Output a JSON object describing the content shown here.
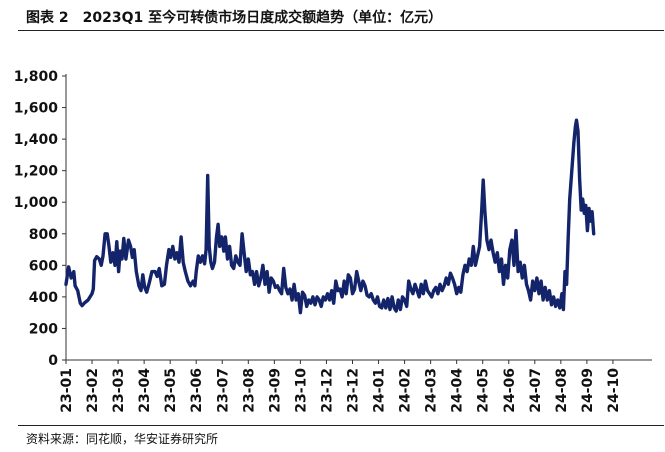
{
  "figure_title": "图表 2　2023Q1 至今可转债市场日度成交额趋势（单位：亿元）",
  "source_note": "资料来源：同花顺，华安证券研究所",
  "colors": {
    "line": "#13246b",
    "axis": "#333333",
    "text": "#111111"
  },
  "chart_data": {
    "type": "line",
    "title": "",
    "xlabel": "",
    "ylabel": "",
    "ylim": [
      0,
      1800
    ],
    "yticks": [
      0,
      200,
      400,
      600,
      800,
      1000,
      1200,
      1400,
      1600,
      1800
    ],
    "ytick_labels": [
      "0",
      "200",
      "400",
      "600",
      "800",
      "1,000",
      "1,200",
      "1,400",
      "1,600",
      "1,800"
    ],
    "xlim": [
      0,
      22.5
    ],
    "xtick_positions": [
      0,
      1,
      2,
      3,
      4,
      5,
      6,
      7,
      8,
      9,
      10,
      11,
      12,
      13,
      14,
      15,
      16,
      17,
      18,
      19,
      20,
      21
    ],
    "xtick_labels": [
      "23-01",
      "23-02",
      "23-03",
      "23-04",
      "23-05",
      "23-06",
      "23-07",
      "23-08",
      "23-09",
      "23-10",
      "23-12",
      "23-12",
      "24-01",
      "24-02",
      "24-03",
      "24-04",
      "24-05",
      "24-06",
      "24-07",
      "24-08",
      "24-09",
      "24-10"
    ],
    "grid": false,
    "legend": "none",
    "series": [
      {
        "color": "#13246b",
        "points": [
          [
            0,
            480
          ],
          [
            0.1,
            590
          ],
          [
            0.2,
            520
          ],
          [
            0.3,
            560
          ],
          [
            0.35,
            470
          ],
          [
            0.45,
            440
          ],
          [
            0.55,
            360
          ],
          [
            0.62,
            345
          ],
          [
            0.7,
            360
          ],
          [
            0.85,
            380
          ],
          [
            1.0,
            420
          ],
          [
            1.05,
            450
          ],
          [
            1.1,
            630
          ],
          [
            1.18,
            655
          ],
          [
            1.28,
            640
          ],
          [
            1.35,
            600
          ],
          [
            1.42,
            660
          ],
          [
            1.5,
            800
          ],
          [
            1.58,
            800
          ],
          [
            1.65,
            720
          ],
          [
            1.72,
            620
          ],
          [
            1.8,
            680
          ],
          [
            1.88,
            600
          ],
          [
            1.95,
            750
          ],
          [
            2.02,
            560
          ],
          [
            2.08,
            690
          ],
          [
            2.15,
            640
          ],
          [
            2.22,
            770
          ],
          [
            2.3,
            640
          ],
          [
            2.4,
            760
          ],
          [
            2.48,
            720
          ],
          [
            2.55,
            650
          ],
          [
            2.62,
            700
          ],
          [
            2.7,
            560
          ],
          [
            2.8,
            470
          ],
          [
            2.88,
            440
          ],
          [
            2.95,
            540
          ],
          [
            3.02,
            460
          ],
          [
            3.1,
            430
          ],
          [
            3.2,
            490
          ],
          [
            3.3,
            560
          ],
          [
            3.42,
            560
          ],
          [
            3.5,
            530
          ],
          [
            3.58,
            580
          ],
          [
            3.68,
            470
          ],
          [
            3.78,
            480
          ],
          [
            3.86,
            600
          ],
          [
            3.95,
            700
          ],
          [
            4.02,
            650
          ],
          [
            4.1,
            720
          ],
          [
            4.18,
            640
          ],
          [
            4.26,
            680
          ],
          [
            4.34,
            620
          ],
          [
            4.42,
            780
          ],
          [
            4.5,
            620
          ],
          [
            4.58,
            560
          ],
          [
            4.68,
            500
          ],
          [
            4.78,
            470
          ],
          [
            4.88,
            500
          ],
          [
            4.95,
            470
          ],
          [
            5.0,
            560
          ],
          [
            5.08,
            660
          ],
          [
            5.16,
            620
          ],
          [
            5.24,
            660
          ],
          [
            5.32,
            610
          ],
          [
            5.38,
            700
          ],
          [
            5.44,
            1170
          ],
          [
            5.5,
            720
          ],
          [
            5.56,
            620
          ],
          [
            5.62,
            580
          ],
          [
            5.7,
            620
          ],
          [
            5.78,
            780
          ],
          [
            5.84,
            860
          ],
          [
            5.9,
            720
          ],
          [
            5.98,
            780
          ],
          [
            6.06,
            690
          ],
          [
            6.12,
            780
          ],
          [
            6.2,
            640
          ],
          [
            6.28,
            720
          ],
          [
            6.36,
            600
          ],
          [
            6.44,
            580
          ],
          [
            6.52,
            660
          ],
          [
            6.6,
            620
          ],
          [
            6.68,
            600
          ],
          [
            6.76,
            800
          ],
          [
            6.84,
            680
          ],
          [
            6.92,
            560
          ],
          [
            7.0,
            640
          ],
          [
            7.08,
            540
          ],
          [
            7.16,
            560
          ],
          [
            7.24,
            480
          ],
          [
            7.32,
            560
          ],
          [
            7.4,
            470
          ],
          [
            7.48,
            520
          ],
          [
            7.56,
            600
          ],
          [
            7.64,
            480
          ],
          [
            7.72,
            560
          ],
          [
            7.8,
            430
          ],
          [
            7.88,
            520
          ],
          [
            7.96,
            500
          ],
          [
            8.04,
            460
          ],
          [
            8.12,
            470
          ],
          [
            8.2,
            440
          ],
          [
            8.28,
            420
          ],
          [
            8.36,
            580
          ],
          [
            8.44,
            460
          ],
          [
            8.52,
            420
          ],
          [
            8.6,
            450
          ],
          [
            8.68,
            380
          ],
          [
            8.76,
            480
          ],
          [
            8.84,
            380
          ],
          [
            8.92,
            420
          ],
          [
            9.0,
            300
          ],
          [
            9.08,
            430
          ],
          [
            9.16,
            410
          ],
          [
            9.24,
            340
          ],
          [
            9.32,
            380
          ],
          [
            9.4,
            360
          ],
          [
            9.48,
            400
          ],
          [
            9.56,
            350
          ],
          [
            9.64,
            400
          ],
          [
            9.72,
            380
          ],
          [
            9.8,
            340
          ],
          [
            9.88,
            400
          ],
          [
            9.96,
            380
          ],
          [
            10.04,
            420
          ],
          [
            10.12,
            380
          ],
          [
            10.2,
            440
          ],
          [
            10.28,
            360
          ],
          [
            10.36,
            500
          ],
          [
            10.44,
            440
          ],
          [
            10.52,
            450
          ],
          [
            10.6,
            400
          ],
          [
            10.68,
            500
          ],
          [
            10.76,
            420
          ],
          [
            10.84,
            540
          ],
          [
            10.92,
            520
          ],
          [
            11.0,
            420
          ],
          [
            11.08,
            450
          ],
          [
            11.16,
            560
          ],
          [
            11.24,
            500
          ],
          [
            11.32,
            440
          ],
          [
            11.4,
            500
          ],
          [
            11.48,
            470
          ],
          [
            11.56,
            410
          ],
          [
            11.64,
            400
          ],
          [
            11.72,
            420
          ],
          [
            11.8,
            380
          ],
          [
            11.88,
            360
          ],
          [
            11.96,
            400
          ],
          [
            12.04,
            340
          ],
          [
            12.12,
            330
          ],
          [
            12.2,
            380
          ],
          [
            12.28,
            330
          ],
          [
            12.36,
            390
          ],
          [
            12.44,
            320
          ],
          [
            12.52,
            400
          ],
          [
            12.6,
            330
          ],
          [
            12.68,
            310
          ],
          [
            12.76,
            380
          ],
          [
            12.84,
            320
          ],
          [
            12.92,
            400
          ],
          [
            13.0,
            380
          ],
          [
            13.08,
            340
          ],
          [
            13.16,
            500
          ],
          [
            13.24,
            450
          ],
          [
            13.32,
            420
          ],
          [
            13.4,
            480
          ],
          [
            13.48,
            440
          ],
          [
            13.56,
            400
          ],
          [
            13.64,
            480
          ],
          [
            13.72,
            420
          ],
          [
            13.8,
            500
          ],
          [
            13.88,
            440
          ],
          [
            13.96,
            420
          ],
          [
            14.04,
            400
          ],
          [
            14.12,
            440
          ],
          [
            14.2,
            460
          ],
          [
            14.28,
            420
          ],
          [
            14.36,
            480
          ],
          [
            14.44,
            440
          ],
          [
            14.52,
            470
          ],
          [
            14.6,
            520
          ],
          [
            14.68,
            480
          ],
          [
            14.76,
            550
          ],
          [
            14.84,
            520
          ],
          [
            14.92,
            480
          ],
          [
            15.0,
            420
          ],
          [
            15.08,
            460
          ],
          [
            15.16,
            430
          ],
          [
            15.24,
            540
          ],
          [
            15.32,
            600
          ],
          [
            15.4,
            560
          ],
          [
            15.48,
            640
          ],
          [
            15.56,
            600
          ],
          [
            15.64,
            720
          ],
          [
            15.72,
            600
          ],
          [
            15.8,
            660
          ],
          [
            15.88,
            720
          ],
          [
            15.96,
            950
          ],
          [
            16.02,
            1140
          ],
          [
            16.08,
            950
          ],
          [
            16.16,
            760
          ],
          [
            16.24,
            700
          ],
          [
            16.32,
            760
          ],
          [
            16.4,
            680
          ],
          [
            16.48,
            620
          ],
          [
            16.56,
            680
          ],
          [
            16.64,
            560
          ],
          [
            16.72,
            640
          ],
          [
            16.8,
            480
          ],
          [
            16.88,
            600
          ],
          [
            16.96,
            520
          ],
          [
            17.04,
            700
          ],
          [
            17.12,
            760
          ],
          [
            17.2,
            600
          ],
          [
            17.28,
            820
          ],
          [
            17.36,
            560
          ],
          [
            17.44,
            620
          ],
          [
            17.52,
            520
          ],
          [
            17.6,
            600
          ],
          [
            17.68,
            480
          ],
          [
            17.76,
            440
          ],
          [
            17.84,
            380
          ],
          [
            17.92,
            500
          ],
          [
            18.0,
            440
          ],
          [
            18.08,
            520
          ],
          [
            18.16,
            420
          ],
          [
            18.24,
            500
          ],
          [
            18.32,
            380
          ],
          [
            18.4,
            460
          ],
          [
            18.48,
            380
          ],
          [
            18.56,
            440
          ],
          [
            18.64,
            350
          ],
          [
            18.72,
            400
          ],
          [
            18.8,
            340
          ],
          [
            18.88,
            380
          ],
          [
            18.96,
            330
          ],
          [
            19.04,
            420
          ],
          [
            19.1,
            320
          ],
          [
            19.16,
            560
          ],
          [
            19.22,
            480
          ],
          [
            19.28,
            760
          ],
          [
            19.34,
            1020
          ],
          [
            19.42,
            1200
          ],
          [
            19.5,
            1380
          ],
          [
            19.56,
            1480
          ],
          [
            19.6,
            1520
          ],
          [
            19.66,
            1450
          ],
          [
            19.72,
            1150
          ],
          [
            19.78,
            950
          ],
          [
            19.84,
            1020
          ],
          [
            19.9,
            930
          ],
          [
            19.96,
            980
          ],
          [
            20.02,
            820
          ],
          [
            20.08,
            960
          ],
          [
            20.14,
            880
          ],
          [
            20.2,
            940
          ],
          [
            20.26,
            800
          ]
        ]
      }
    ]
  }
}
